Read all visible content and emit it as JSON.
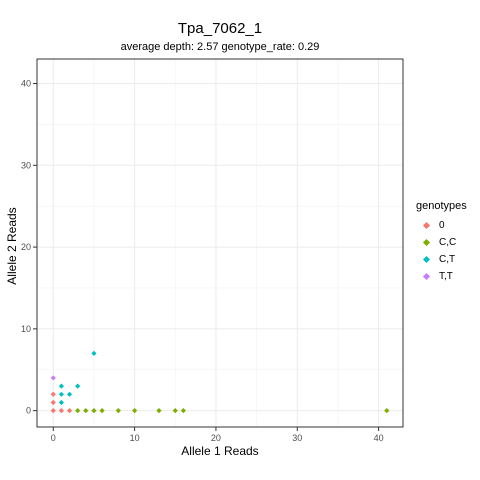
{
  "chart_data": {
    "type": "scatter",
    "title": "Tpa_7062_1",
    "subtitle": "average depth:  2.57  genotype_rate:  0.29",
    "xlabel": "Allele 1 Reads",
    "ylabel": "Allele 2 Reads",
    "xlim": [
      -2,
      43
    ],
    "ylim": [
      -2,
      43
    ],
    "xticks": [
      0,
      10,
      20,
      30,
      40
    ],
    "yticks": [
      0,
      10,
      20,
      30,
      40
    ],
    "grid": true,
    "legend": {
      "title": "genotypes",
      "position": "right"
    },
    "series": [
      {
        "name": "0",
        "color": "#F8766D",
        "points": [
          [
            0,
            0
          ],
          [
            0,
            1
          ],
          [
            0,
            2
          ],
          [
            1,
            0
          ],
          [
            2,
            0
          ]
        ]
      },
      {
        "name": "C,C",
        "color": "#7CAE00",
        "points": [
          [
            3,
            0
          ],
          [
            4,
            0
          ],
          [
            5,
            0
          ],
          [
            6,
            0
          ],
          [
            8,
            0
          ],
          [
            10,
            0
          ],
          [
            13,
            0
          ],
          [
            15,
            0
          ],
          [
            16,
            0
          ],
          [
            41,
            0
          ]
        ]
      },
      {
        "name": "C,T",
        "color": "#00BFC4",
        "points": [
          [
            1,
            1
          ],
          [
            1,
            2
          ],
          [
            1,
            3
          ],
          [
            2,
            2
          ],
          [
            3,
            3
          ],
          [
            5,
            7
          ]
        ]
      },
      {
        "name": "T,T",
        "color": "#C77CFF",
        "points": [
          [
            0,
            4
          ]
        ]
      }
    ]
  }
}
